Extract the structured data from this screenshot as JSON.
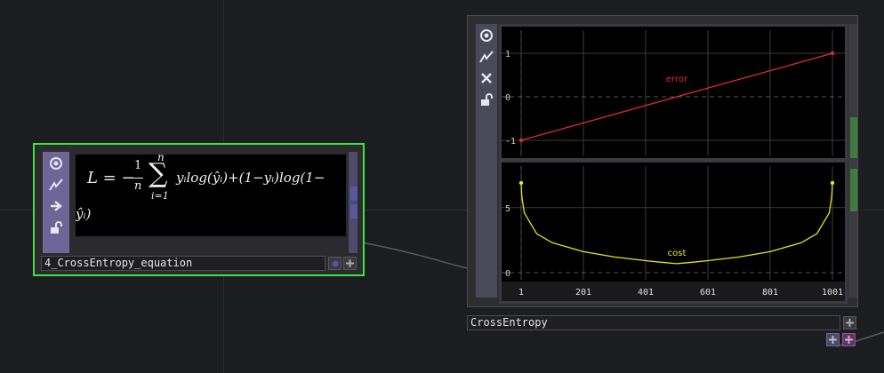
{
  "node1": {
    "name": "4_CrossEntropy_equation",
    "equation": {
      "lhs": "L = −",
      "frac_num": "1",
      "frac_den": "n",
      "sum_upper": "n",
      "sum_lower": "i=1",
      "body": "yᵢlog(ŷᵢ)+(1−yᵢ)log(1−",
      "wrap": "ŷᵢ)"
    },
    "icons": [
      "viewer-icon",
      "flags-icon",
      "arrow-icon",
      "lock-icon"
    ]
  },
  "node2": {
    "name": "CrossEntropy",
    "icons": [
      "viewer-icon",
      "flags-icon",
      "close-icon",
      "lock-icon"
    ],
    "chart_data": [
      {
        "type": "line",
        "series": [
          {
            "name": "error",
            "color": "#e8282b",
            "x": [
              1,
              1001
            ],
            "values": [
              -1,
              1
            ]
          }
        ],
        "yticks": [
          "1",
          "0",
          "-1"
        ],
        "ylim": [
          -1,
          1
        ],
        "grid": true
      },
      {
        "type": "line",
        "series": [
          {
            "name": "cost",
            "color": "#e6e620",
            "x": [
              1,
              3,
              11,
              51,
              101,
              201,
              301,
              401,
              451,
              501,
              551,
              601,
              701,
              801,
              901,
              951,
              991,
              999,
              1001
            ],
            "values": [
              6.9,
              5.9,
              4.6,
              2.99,
              2.3,
              1.61,
              1.2,
              0.92,
              0.8,
              0.69,
              0.8,
              0.92,
              1.2,
              1.61,
              2.3,
              2.99,
              4.6,
              5.9,
              6.9
            ]
          }
        ],
        "xticks": [
          "1",
          "201",
          "401",
          "601",
          "801",
          "1001"
        ],
        "yticks": [
          "5",
          "0"
        ],
        "xlim": [
          1,
          1001
        ],
        "ylim": [
          0,
          6.9
        ],
        "grid": true
      }
    ]
  }
}
